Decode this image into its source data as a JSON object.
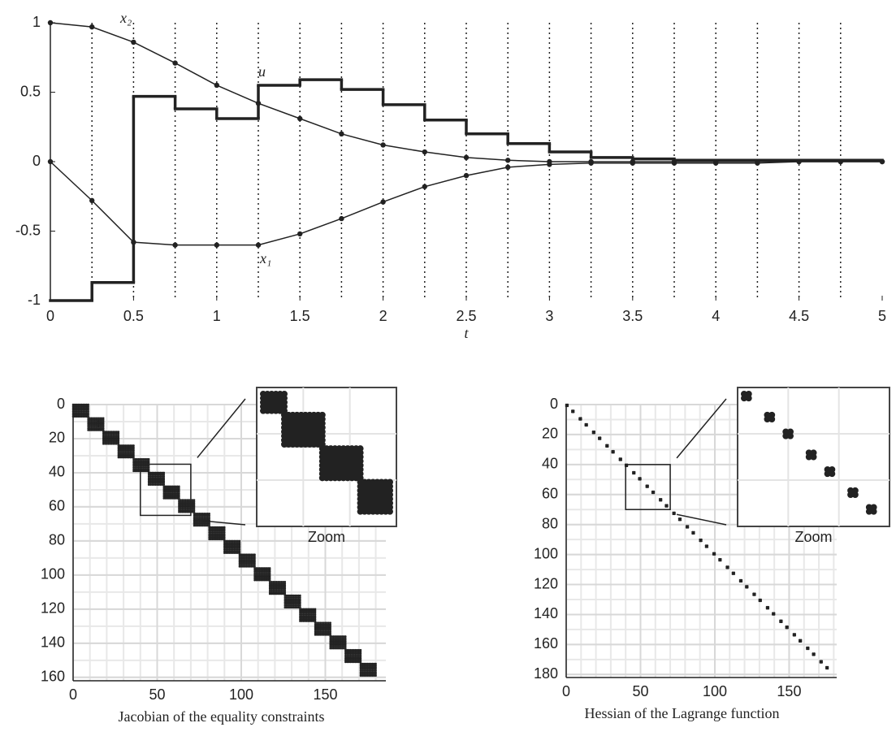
{
  "chart_data": [
    {
      "type": "line",
      "x": [
        0,
        0.25,
        0.5,
        0.75,
        1,
        1.25,
        1.5,
        1.75,
        2,
        2.25,
        2.5,
        2.75,
        3,
        3.25,
        3.5,
        3.75,
        4,
        4.25,
        4.5,
        4.75,
        5
      ],
      "series": [
        {
          "name": "x₁",
          "color": "#222222",
          "values": [
            0,
            -0.28,
            -0.58,
            -0.6,
            -0.6,
            -0.6,
            -0.52,
            -0.41,
            -0.29,
            -0.18,
            -0.1,
            -0.04,
            -0.02,
            -0.01,
            -0.01,
            -0.01,
            -0.01,
            -0.01,
            0,
            0,
            0
          ]
        },
        {
          "name": "x₂",
          "color": "#222222",
          "values": [
            1,
            0.97,
            0.86,
            0.71,
            0.55,
            0.42,
            0.31,
            0.2,
            0.12,
            0.07,
            0.03,
            0.01,
            0,
            0,
            0,
            0,
            0,
            0,
            0,
            0,
            0
          ]
        },
        {
          "name": "u",
          "color": "#222222",
          "step": "post",
          "values": [
            -1,
            -0.87,
            0.47,
            0.38,
            0.31,
            0.55,
            0.59,
            0.52,
            0.41,
            0.3,
            0.2,
            0.13,
            0.07,
            0.03,
            0.02,
            0.01,
            0.01,
            0.01,
            0.01,
            0.01,
            null
          ]
        }
      ],
      "xlabel": "t",
      "xlim": [
        0,
        5
      ],
      "ylim": [
        -1,
        1
      ],
      "xticks": [
        0,
        0.5,
        1,
        1.5,
        2,
        2.5,
        3,
        3.5,
        4,
        4.5,
        5
      ],
      "yticks": [
        -1,
        -0.5,
        0,
        0.5,
        1
      ]
    },
    {
      "type": "spy",
      "title": "Jacobian of the equality constraints",
      "xlim": [
        0,
        186
      ],
      "ylim": [
        0,
        162
      ],
      "xticks": [
        0,
        50,
        100,
        150
      ],
      "yticks": [
        0,
        20,
        40,
        60,
        80,
        100,
        120,
        140,
        160
      ],
      "minor_grid_step": 10,
      "block_size": [
        8,
        10
      ],
      "block_rows": [
        0,
        8,
        16,
        24,
        32,
        40,
        48,
        56,
        64,
        72,
        80,
        88,
        96,
        104,
        112,
        120,
        128,
        136,
        144,
        152
      ],
      "block_cols": [
        0,
        9,
        18,
        27,
        36,
        45,
        54,
        63,
        72,
        81,
        90,
        99,
        108,
        117,
        126,
        135,
        144,
        153,
        162,
        171
      ],
      "zoom": {
        "xlim": [
          40,
          70
        ],
        "ylim": [
          35,
          65
        ],
        "label": "Zoom"
      }
    },
    {
      "type": "spy",
      "title": "Hessian of the Lagrange function",
      "xlim": [
        0,
        182
      ],
      "ylim": [
        0,
        182
      ],
      "xticks": [
        0,
        50,
        100,
        150
      ],
      "yticks": [
        0,
        20,
        40,
        60,
        80,
        100,
        120,
        140,
        160,
        180
      ],
      "minor_grid_step": 10,
      "block_size": [
        2,
        2
      ],
      "block_rows": [
        0,
        4,
        9,
        13,
        18,
        22,
        27,
        31,
        36,
        40,
        45,
        49,
        54,
        58,
        63,
        67,
        72,
        76,
        81,
        85,
        90,
        94,
        99,
        103,
        108,
        112,
        117,
        121,
        126,
        130,
        135,
        139,
        144,
        148,
        153,
        157,
        162,
        166,
        171,
        175
      ],
      "block_cols": [
        0,
        4,
        9,
        13,
        18,
        22,
        27,
        31,
        36,
        40,
        45,
        49,
        54,
        58,
        63,
        67,
        72,
        76,
        81,
        85,
        90,
        94,
        99,
        103,
        108,
        112,
        117,
        121,
        126,
        130,
        135,
        139,
        144,
        148,
        153,
        157,
        162,
        166,
        171,
        175
      ],
      "zoom": {
        "xlim": [
          40,
          70
        ],
        "ylim": [
          40,
          70
        ],
        "label": "Zoom"
      }
    }
  ]
}
